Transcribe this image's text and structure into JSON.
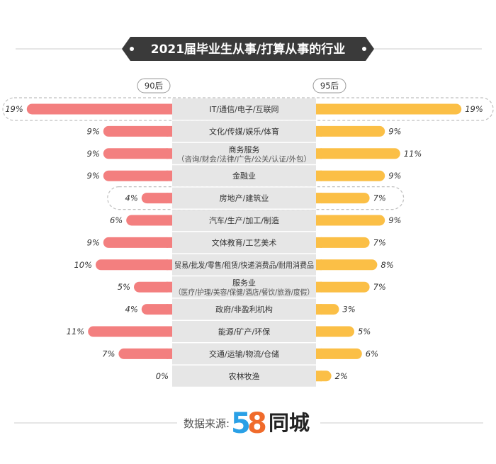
{
  "title": "2021届毕业生从事/打算从事的行业",
  "left_header": "90后",
  "right_header": "95后",
  "source_label": "数据来源:",
  "logo": {
    "digits": [
      "5",
      "8"
    ],
    "text": "同城",
    "colors": {
      "five": "#2aa0e6",
      "eight": "#f06b2b"
    }
  },
  "colors": {
    "left_bar": "#f37f7f",
    "right_bar": "#fbbf46",
    "center_band": "#e6e6e6",
    "title_bg": "#3a3a3a",
    "dashed": "#bfbfbf"
  },
  "highlighted_rows": [
    0,
    4
  ],
  "chart_data": {
    "type": "bar",
    "title": "2021届毕业生从事/打算从事的行业",
    "categories": [
      "IT/通信/电子/互联网",
      "文化/传媒/娱乐/体育",
      "商务服务",
      "金融业",
      "房地产/建筑业",
      "汽车/生产/加工/制造",
      "文体教育/工艺美术",
      "贸易/批发/零售/租赁/快递消费品/耐用消费品",
      "服务业",
      "政府/非盈利机构",
      "能源/矿产/环保",
      "交通/运输/物流/仓储",
      "农林牧渔"
    ],
    "category_notes": [
      "",
      "",
      "（咨询/财会/法律/广告/公关/认证/外包）",
      "",
      "",
      "",
      "",
      "",
      "（医疗/护理/美容/保健/酒店/餐饮/旅游/度假）",
      "",
      "",
      "",
      ""
    ],
    "series": [
      {
        "name": "90后",
        "values": [
          19,
          9,
          9,
          9,
          4,
          6,
          9,
          10,
          5,
          4,
          11,
          7,
          0
        ],
        "labels": [
          "19%",
          "9%",
          "9%",
          "9%",
          "4%",
          "6%",
          "9%",
          "10%",
          "5%",
          "4%",
          "11%",
          "7%",
          "0%"
        ]
      },
      {
        "name": "95后",
        "values": [
          19,
          9,
          11,
          9,
          7,
          9,
          7,
          8,
          7,
          3,
          5,
          6,
          2
        ],
        "labels": [
          "19%",
          "9%",
          "11%",
          "9%",
          "7%",
          "9%",
          "7%",
          "8%",
          "7%",
          "3%",
          "5%",
          "6%",
          "2%"
        ]
      }
    ],
    "orientation": "horizontal-butterfly"
  }
}
